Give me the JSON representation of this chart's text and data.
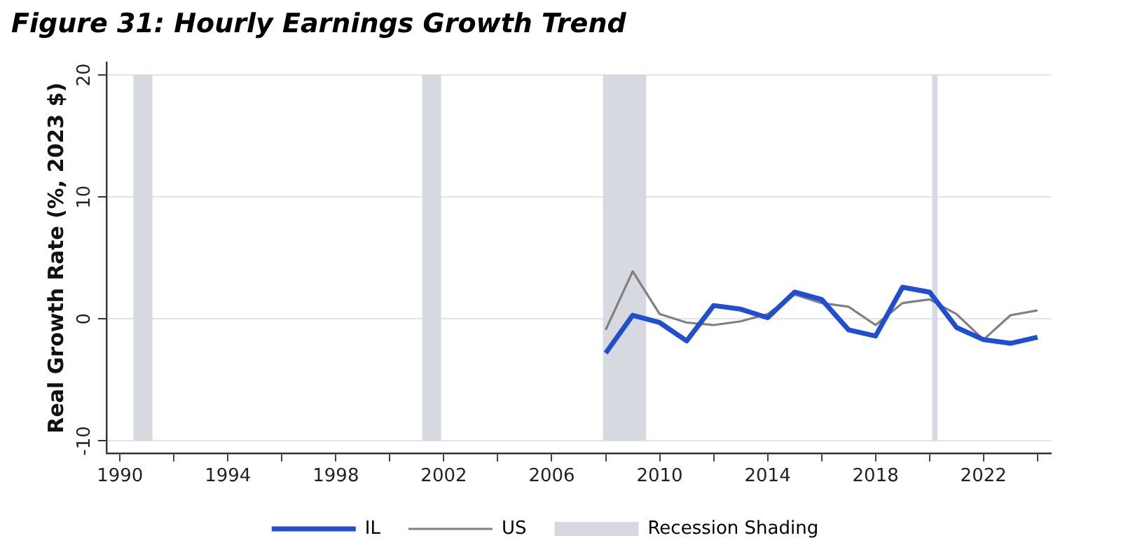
{
  "chart_data": {
    "type": "line",
    "title": "Figure 31: Hourly Earnings Growth Trend",
    "ylabel": "Real Growth Rate (%, 2023 $)",
    "x": [
      2008,
      2009,
      2010,
      2011,
      2012,
      2013,
      2014,
      2015,
      2016,
      2017,
      2018,
      2019,
      2020,
      2021,
      2022,
      2023,
      2024
    ],
    "series": [
      {
        "name": "IL",
        "color": "#1f4fd0",
        "values": [
          -2.8,
          0.3,
          -0.3,
          -1.8,
          1.1,
          0.8,
          0.1,
          2.2,
          1.6,
          -0.9,
          -1.4,
          2.6,
          2.2,
          -0.7,
          -1.7,
          -2.0,
          -1.5
        ]
      },
      {
        "name": "US",
        "color": "#808080",
        "values": [
          -0.9,
          3.9,
          0.4,
          -0.3,
          -0.5,
          -0.2,
          0.4,
          2.0,
          1.3,
          1.0,
          -0.5,
          1.3,
          1.6,
          0.4,
          -1.7,
          0.3,
          0.7
        ]
      }
    ],
    "xlim": [
      1989.5,
      2024.5
    ],
    "xticks": [
      1990,
      {
        "value": 1992,
        "label": null
      },
      1994,
      {
        "value": 1996,
        "label": null
      },
      1998,
      {
        "value": 2000,
        "label": null
      },
      2002,
      {
        "value": 2004,
        "label": null
      },
      2006,
      {
        "value": 2008,
        "label": null
      },
      2010,
      {
        "value": 2012,
        "label": null
      },
      2014,
      {
        "value": 2016,
        "label": null
      },
      2018,
      {
        "value": 2020,
        "label": null
      },
      2022,
      {
        "value": 2024,
        "label": null
      }
    ],
    "ylim": [
      -11,
      21
    ],
    "yticks": [
      -10,
      0,
      10,
      20
    ],
    "bands": [
      {
        "axis": "x",
        "from": 1990.5,
        "to": 1991.2,
        "label": "Recession Shading",
        "color": "#d6d9e0"
      },
      {
        "axis": "x",
        "from": 2001.2,
        "to": 2001.9,
        "color": "#d6d9e0"
      },
      {
        "axis": "x",
        "from": 2007.9,
        "to": 2009.5,
        "color": "#d6d9e0"
      },
      {
        "axis": "x",
        "from": 2020.1,
        "to": 2020.3,
        "color": "#d6d9e0"
      }
    ],
    "grid": "y",
    "legend": "bottom",
    "marker": "none",
    "line_style": "solid"
  }
}
